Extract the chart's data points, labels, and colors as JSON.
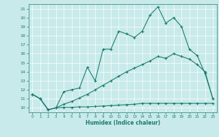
{
  "xlabel": "Humidex (Indice chaleur)",
  "background_color": "#c8eaea",
  "line_color": "#1a7a6e",
  "xlim": [
    -0.5,
    23.5
  ],
  "ylim": [
    9.5,
    21.5
  ],
  "xticks": [
    0,
    1,
    2,
    3,
    4,
    5,
    6,
    7,
    8,
    9,
    10,
    11,
    12,
    13,
    14,
    15,
    16,
    17,
    18,
    19,
    20,
    21,
    22,
    23
  ],
  "yticks": [
    10,
    11,
    12,
    13,
    14,
    15,
    16,
    17,
    18,
    19,
    20,
    21
  ],
  "line1_x": [
    0,
    1,
    2,
    3,
    4,
    5,
    6,
    7,
    8,
    9,
    10,
    11,
    12,
    13,
    14,
    15,
    16,
    17,
    18,
    19,
    20,
    21,
    22,
    23
  ],
  "line1_y": [
    11.5,
    11.0,
    9.8,
    10.0,
    11.8,
    12.0,
    12.2,
    14.5,
    13.0,
    16.5,
    16.5,
    18.5,
    18.2,
    17.8,
    18.5,
    20.3,
    21.2,
    19.4,
    20.0,
    19.0,
    16.5,
    15.8,
    13.8,
    11.0
  ],
  "line2_x": [
    0,
    1,
    2,
    3,
    4,
    5,
    6,
    7,
    8,
    9,
    10,
    11,
    12,
    13,
    14,
    15,
    16,
    17,
    18,
    19,
    20,
    21,
    22,
    23
  ],
  "line2_y": [
    11.5,
    11.0,
    9.8,
    10.0,
    10.05,
    10.05,
    10.1,
    10.1,
    10.15,
    10.2,
    10.25,
    10.3,
    10.35,
    10.4,
    10.5,
    10.5,
    10.5,
    10.5,
    10.5,
    10.5,
    10.5,
    10.5,
    10.5,
    10.5
  ],
  "line3_x": [
    0,
    1,
    2,
    3,
    4,
    5,
    6,
    7,
    8,
    9,
    10,
    11,
    12,
    13,
    14,
    15,
    16,
    17,
    18,
    19,
    20,
    21,
    22,
    23
  ],
  "line3_y": [
    11.5,
    11.0,
    9.8,
    10.0,
    10.4,
    10.7,
    11.1,
    11.5,
    12.0,
    12.5,
    13.0,
    13.5,
    14.0,
    14.4,
    14.8,
    15.2,
    15.7,
    15.5,
    16.0,
    15.7,
    15.4,
    14.8,
    14.0,
    11.0
  ]
}
